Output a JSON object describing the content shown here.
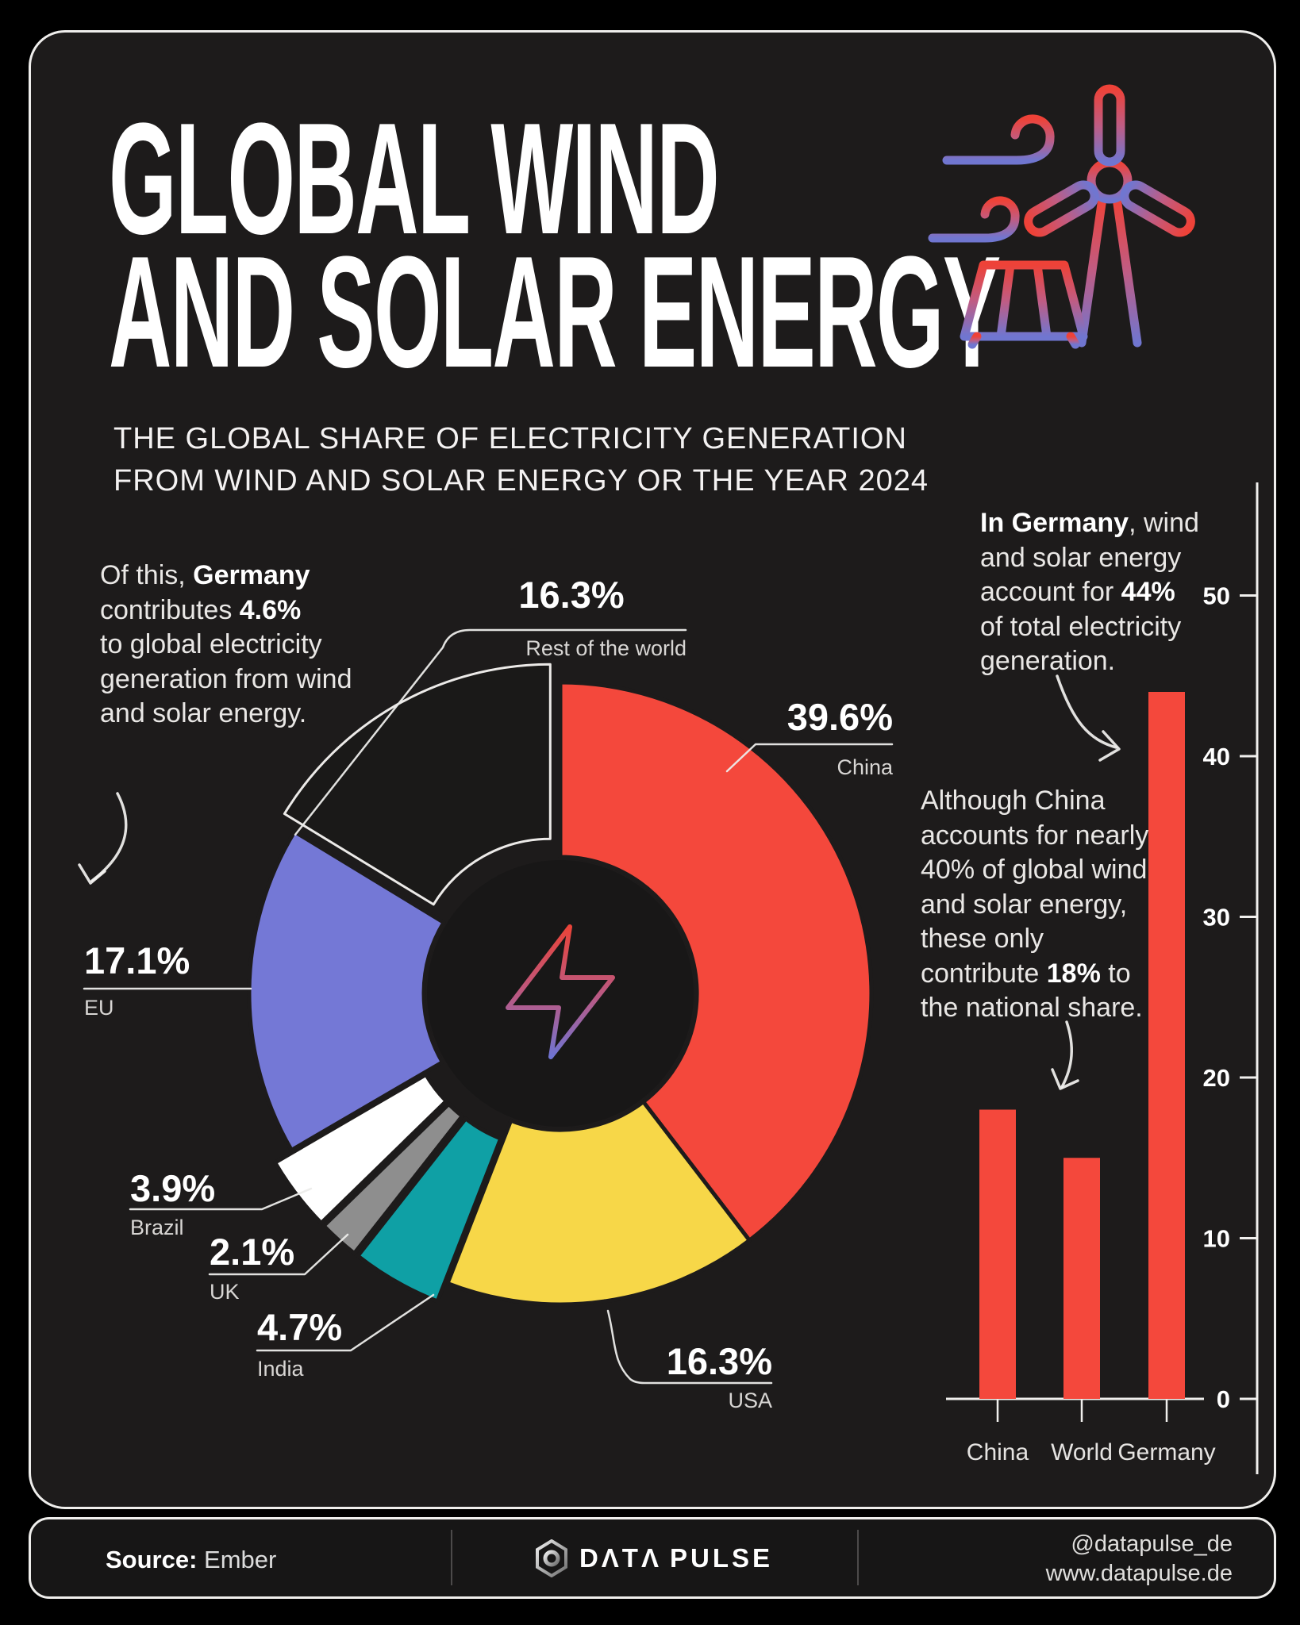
{
  "title": {
    "line1": "GLOBAL WIND",
    "line2": "AND SOLAR ENERGY"
  },
  "subtitle": {
    "line1": "THE GLOBAL SHARE OF ELECTRICITY GENERATION",
    "line2": "FROM WIND AND SOLAR ENERGY OR THE YEAR 2024"
  },
  "annotations": {
    "germany_share": [
      [
        {
          "t": "Of this, "
        },
        {
          "t": "Germany",
          "b": true
        }
      ],
      [
        {
          "t": "contributes "
        },
        {
          "t": "4.6%",
          "b": true
        }
      ],
      [
        {
          "t": "to global electricity"
        }
      ],
      [
        {
          "t": "generation from wind"
        }
      ],
      [
        {
          "t": "and solar energy."
        }
      ]
    ],
    "germany_national": [
      [
        {
          "t": "In Germany",
          "b": true
        },
        {
          "t": ", wind"
        }
      ],
      [
        {
          "t": "and solar energy"
        }
      ],
      [
        {
          "t": "account for "
        },
        {
          "t": "44%",
          "b": true
        }
      ],
      [
        {
          "t": "of total electricity"
        }
      ],
      [
        {
          "t": "generation."
        }
      ]
    ],
    "china_national": [
      [
        {
          "t": "Although China"
        }
      ],
      [
        {
          "t": "accounts for nearly"
        }
      ],
      [
        {
          "t": "40% of global wind"
        }
      ],
      [
        {
          "t": "and solar energy,"
        }
      ],
      [
        {
          "t": "these only"
        }
      ],
      [
        {
          "t": "contribute "
        },
        {
          "t": "18%",
          "b": true
        },
        {
          "t": " to"
        }
      ],
      [
        {
          "t": "the national share."
        }
      ]
    ]
  },
  "donut_labels": {
    "rotw": {
      "pct": "16.3%",
      "name": "Rest of the world"
    },
    "china": {
      "pct": "39.6%",
      "name": "China"
    },
    "eu": {
      "pct": "17.1%",
      "name": "EU"
    },
    "brazil": {
      "pct": "3.9%",
      "name": "Brazil"
    },
    "uk": {
      "pct": "2.1%",
      "name": "UK"
    },
    "india": {
      "pct": "4.7%",
      "name": "India"
    },
    "usa": {
      "pct": "16.3%",
      "name": "USA"
    }
  },
  "chart_data": [
    {
      "type": "pie",
      "variant": "donut",
      "title": "Share of global electricity generation from wind and solar energy, 2024",
      "unit": "%",
      "slices": [
        {
          "label": "China",
          "value": 39.6,
          "color": "#f4483c"
        },
        {
          "label": "USA",
          "value": 16.3,
          "color": "#f7d748"
        },
        {
          "label": "India",
          "value": 4.7,
          "color": "#0fa0a5",
          "exploded": true
        },
        {
          "label": "UK",
          "value": 2.1,
          "color": "#8e8e8e",
          "exploded": true
        },
        {
          "label": "Brazil",
          "value": 3.9,
          "color": "#ffffff",
          "exploded": true
        },
        {
          "label": "EU",
          "value": 17.1,
          "color": "#7478d6"
        },
        {
          "label": "Rest of the world",
          "value": 16.3,
          "color": "#1a1918",
          "exploded": true,
          "outline": "#eceae8"
        }
      ]
    },
    {
      "type": "bar",
      "title": "Wind and solar share of national electricity generation (%)",
      "categories": [
        "China",
        "World",
        "Germany"
      ],
      "values": [
        18,
        15,
        44
      ],
      "bar_color": "#f4483c",
      "axis_color": "#f0efed",
      "ylim": [
        0,
        50
      ],
      "yticks": [
        0,
        10,
        20,
        30,
        40,
        50
      ],
      "axis_side": "right",
      "grid": false
    }
  ],
  "colors": {
    "background": "#000000",
    "card": "#1d1b1b",
    "accent_red": "#f4483c",
    "accent_purple": "#7478d6",
    "accent_teal": "#0fa0a5",
    "accent_yellow": "#f7d748"
  },
  "icons": {
    "header": "wind-turbine-and-solar-panel-icon",
    "donut_center": "lightning-bolt-icon",
    "brand": "hexagon-logo-icon"
  },
  "footer": {
    "source_label": "Source:",
    "source_value": " Ember",
    "brand_a": "DΛTΛ",
    "brand_b": "PULSE",
    "handle": "@datapulse_de",
    "website": "www.datapulse.de"
  }
}
